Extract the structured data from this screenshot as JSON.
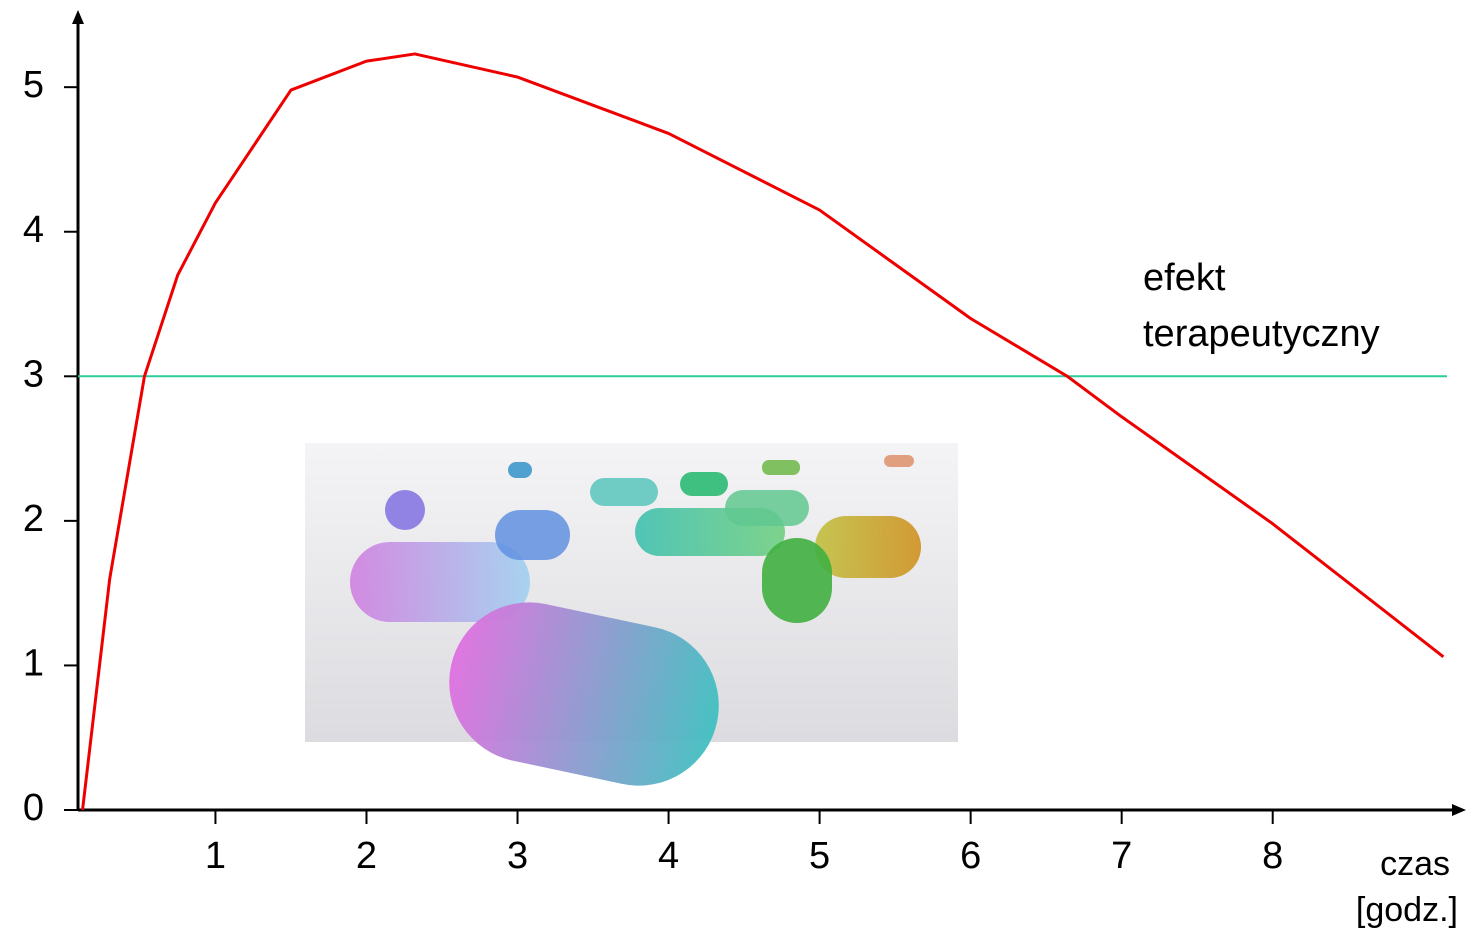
{
  "chart_data": {
    "type": "line",
    "x": [
      0.12,
      0.3,
      0.53,
      0.75,
      1,
      1.5,
      2,
      2.32,
      3,
      4,
      5,
      6,
      6.64,
      7,
      8,
      9.13
    ],
    "series": [
      {
        "color": "#ee0000",
        "values": [
          0,
          1.6,
          3,
          3.7,
          4.2,
          4.98,
          5.18,
          5.23,
          5.07,
          4.68,
          4.15,
          3.4,
          3,
          2.72,
          1.98,
          1.06
        ]
      }
    ],
    "threshold": {
      "value": 3,
      "color": "#2ecc9a",
      "label": [
        "efekt",
        "terapeutyczny"
      ]
    },
    "x_label": [
      "czas",
      "[godz.]"
    ],
    "xlim": [
      0.09,
      9.24
    ],
    "ylim": [
      0,
      5.52
    ],
    "xticks": [
      1,
      2,
      3,
      4,
      5,
      6,
      7,
      8
    ],
    "yticks": [
      0,
      1,
      2,
      3,
      4,
      5
    ]
  }
}
